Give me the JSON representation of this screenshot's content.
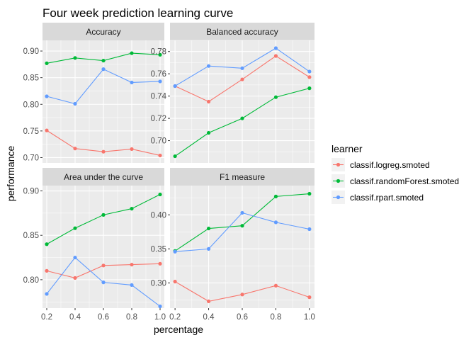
{
  "chart_data": {
    "type": "line",
    "title": "Four week prediction learning curve",
    "xlabel": "percentage",
    "ylabel": "performance",
    "legend": {
      "title": "learner",
      "placement": "right",
      "entries": [
        "classif.logreg.smoted",
        "classif.randomForest.smoted",
        "classif.rpart.smoted"
      ]
    },
    "colors": {
      "classif.logreg.smoted": "#F8766D",
      "classif.randomForest.smoted": "#00BA38",
      "classif.rpart.smoted": "#619CFF",
      "panel_bg": "#EBEBEB",
      "strip_bg": "#D9D9D9",
      "grid": "#FFFFFF"
    },
    "x": [
      0.2,
      0.4,
      0.6,
      0.8,
      1.0
    ],
    "x_tick_labels": [
      "0.2",
      "0.4",
      "0.6",
      "0.8",
      "1.0"
    ],
    "xlim": [
      0.17,
      1.03
    ],
    "grid": true,
    "panels": [
      {
        "title": "Accuracy",
        "ylim": [
          0.69,
          0.92
        ],
        "yticks": [
          0.7,
          0.75,
          0.8,
          0.85,
          0.9
        ],
        "ytick_labels": [
          "0.70",
          "0.75",
          "0.80",
          "0.85",
          "0.90"
        ],
        "series": [
          {
            "name": "classif.logreg.smoted",
            "values": [
              0.751,
              0.717,
              0.711,
              0.716,
              0.704
            ]
          },
          {
            "name": "classif.randomForest.smoted",
            "values": [
              0.877,
              0.887,
              0.882,
              0.896,
              0.893
            ]
          },
          {
            "name": "classif.rpart.smoted",
            "values": [
              0.815,
              0.801,
              0.866,
              0.841,
              0.843
            ]
          }
        ]
      },
      {
        "title": "Balanced accuracy",
        "ylim": [
          0.68,
          0.79
        ],
        "yticks": [
          0.7,
          0.72,
          0.74,
          0.76,
          0.78
        ],
        "ytick_labels": [
          "0.70",
          "0.72",
          "0.74",
          "0.76",
          "0.78"
        ],
        "series": [
          {
            "name": "classif.logreg.smoted",
            "values": [
              0.749,
              0.735,
              0.755,
              0.776,
              0.757
            ]
          },
          {
            "name": "classif.randomForest.smoted",
            "values": [
              0.686,
              0.707,
              0.72,
              0.739,
              0.747
            ]
          },
          {
            "name": "classif.rpart.smoted",
            "values": [
              0.749,
              0.767,
              0.765,
              0.783,
              0.762
            ]
          }
        ]
      },
      {
        "title": "Area under the curve",
        "ylim": [
          0.768,
          0.906
        ],
        "yticks": [
          0.8,
          0.85,
          0.9
        ],
        "ytick_labels": [
          "0.80",
          "0.85",
          "0.90"
        ],
        "series": [
          {
            "name": "classif.logreg.smoted",
            "values": [
              0.81,
              0.802,
              0.816,
              0.817,
              0.818
            ]
          },
          {
            "name": "classif.randomForest.smoted",
            "values": [
              0.84,
              0.858,
              0.873,
              0.88,
              0.896
            ]
          },
          {
            "name": "classif.rpart.smoted",
            "values": [
              0.784,
              0.825,
              0.797,
              0.794,
              0.77
            ]
          }
        ]
      },
      {
        "title": "F1 measure",
        "ylim": [
          0.263,
          0.443
        ],
        "yticks": [
          0.3,
          0.35,
          0.4
        ],
        "ytick_labels": [
          "0.30",
          "0.35",
          "0.40"
        ],
        "series": [
          {
            "name": "classif.logreg.smoted",
            "values": [
              0.302,
              0.273,
              0.283,
              0.296,
              0.279
            ]
          },
          {
            "name": "classif.randomForest.smoted",
            "values": [
              0.347,
              0.38,
              0.384,
              0.427,
              0.431
            ]
          },
          {
            "name": "classif.rpart.smoted",
            "values": [
              0.346,
              0.35,
              0.403,
              0.389,
              0.379
            ]
          }
        ]
      }
    ]
  }
}
